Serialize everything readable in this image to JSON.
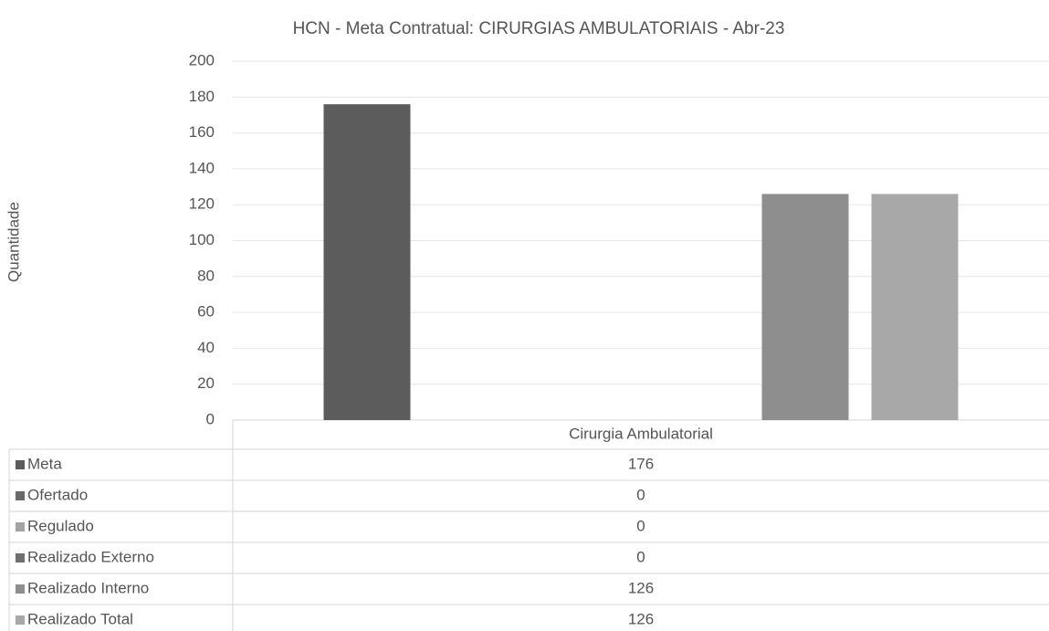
{
  "chart_data": {
    "type": "bar",
    "title": "HCN - Meta Contratual: CIRURGIAS AMBULATORIAIS - Abr-23",
    "y_label": "Quantidade",
    "categories": [
      "Cirurgia Ambulatorial"
    ],
    "series": [
      {
        "name": "Meta",
        "color": "#5c5c5c",
        "values": [
          176
        ]
      },
      {
        "name": "Ofertado",
        "color": "#6a6a6a",
        "values": [
          0
        ]
      },
      {
        "name": "Regulado",
        "color": "#a3a3a3",
        "values": [
          0
        ]
      },
      {
        "name": "Realizado Externo",
        "color": "#707070",
        "values": [
          0
        ]
      },
      {
        "name": "Realizado Interno",
        "color": "#8e8e8e",
        "values": [
          126
        ]
      },
      {
        "name": "Realizado Total",
        "color": "#a8a8a8",
        "values": [
          126
        ]
      }
    ],
    "ylim": [
      0,
      200
    ],
    "yticks": [
      0,
      20,
      40,
      60,
      80,
      100,
      120,
      140,
      160,
      180,
      200
    ],
    "grid": true
  }
}
